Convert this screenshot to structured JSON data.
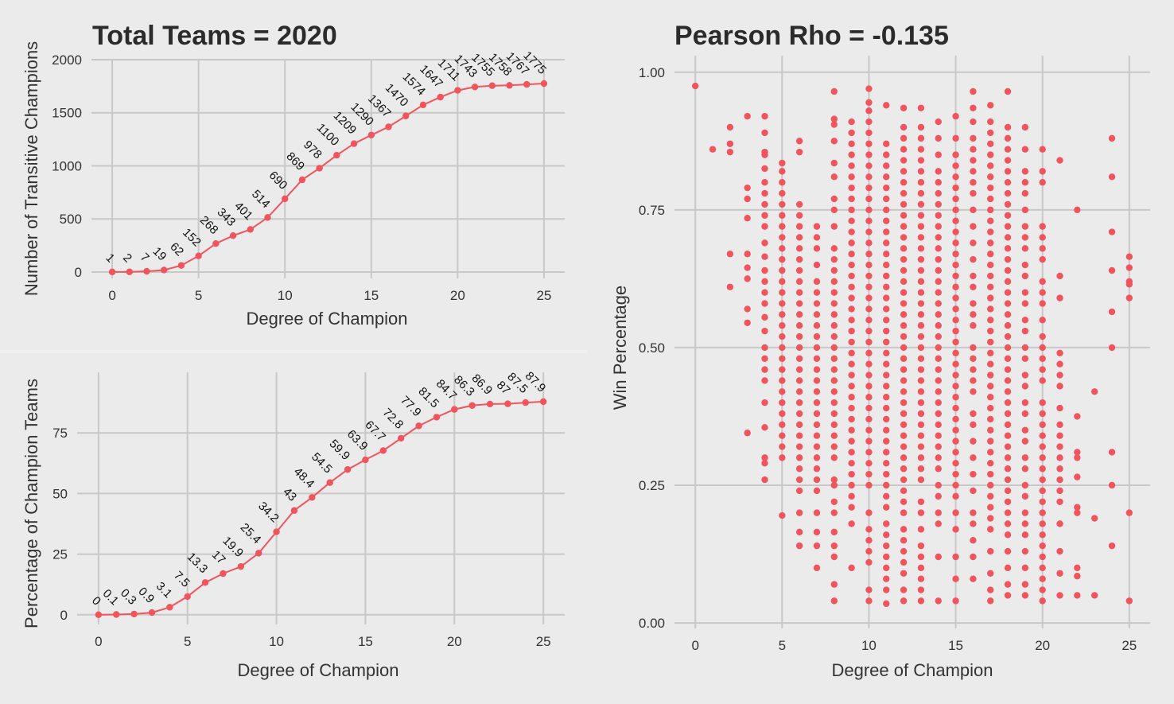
{
  "colors": {
    "background": "#ebebeb",
    "grid": "#c8c8c8",
    "accent": "#f0545c",
    "text": "#333333",
    "title": "#2b2b2b"
  },
  "chart_data": [
    {
      "type": "line",
      "title": "Total Teams = 2020",
      "xlabel": "Degree of Champion",
      "ylabel": "Number of Transitive Champions",
      "xlim": [
        -1.2,
        26.2
      ],
      "ylim": [
        -60,
        2000
      ],
      "xticks": [
        0,
        5,
        10,
        15,
        20,
        25
      ],
      "yticks": [
        0,
        500,
        1000,
        1500,
        2000
      ],
      "x": [
        0,
        1,
        2,
        3,
        4,
        5,
        6,
        7,
        8,
        9,
        10,
        11,
        12,
        13,
        14,
        15,
        16,
        17,
        18,
        19,
        20,
        21,
        22,
        23,
        24,
        25
      ],
      "values": [
        1,
        2,
        7,
        19,
        62,
        152,
        268,
        343,
        401,
        514,
        690,
        869,
        978,
        1100,
        1209,
        1290,
        1367,
        1470,
        1574,
        1647,
        1711,
        1743,
        1755,
        1758,
        1767,
        1775
      ],
      "labels": [
        "1",
        "2",
        "7",
        "19",
        "62",
        "152",
        "268",
        "343",
        "401",
        "514",
        "690",
        "869",
        "978",
        "1100",
        "1209",
        "1290",
        "1367",
        "1470",
        "1574",
        "1647",
        "1711",
        "1743",
        "1755",
        "1758",
        "1767",
        "1775"
      ],
      "grid": true
    },
    {
      "type": "line",
      "title": "",
      "xlabel": "Degree of Champion",
      "ylabel": "Percentage of Champion Teams",
      "xlim": [
        -1.2,
        26.2
      ],
      "ylim": [
        -4,
        100
      ],
      "xticks": [
        0,
        5,
        10,
        15,
        20,
        25
      ],
      "yticks": [
        0,
        25,
        50,
        75
      ],
      "x": [
        0,
        1,
        2,
        3,
        4,
        5,
        6,
        7,
        8,
        9,
        10,
        11,
        12,
        13,
        14,
        15,
        16,
        17,
        18,
        19,
        20,
        21,
        22,
        23,
        24,
        25
      ],
      "values": [
        0,
        0.1,
        0.3,
        0.9,
        3.1,
        7.5,
        13.3,
        17,
        19.9,
        25.4,
        34.2,
        43,
        48.4,
        54.5,
        59.9,
        63.9,
        67.7,
        72.8,
        77.9,
        81.5,
        84.7,
        86.3,
        86.9,
        87,
        87.5,
        87.9
      ],
      "labels": [
        "0",
        "0.1",
        "0.3",
        "0.9",
        "3.1",
        "7.5",
        "13.3",
        "17",
        "19.9",
        "25.4",
        "34.2",
        "43",
        "48.4",
        "54.5",
        "59.9",
        "63.9",
        "67.7",
        "72.8",
        "77.9",
        "81.5",
        "84.7",
        "86.3",
        "86.9",
        "87",
        "87.5",
        "87.9"
      ],
      "grid": true
    },
    {
      "type": "scatter",
      "title": "Pearson Rho = -0.135",
      "xlabel": "Degree of Champion",
      "ylabel": "Win Percentage",
      "xlim": [
        -1.2,
        26.2
      ],
      "ylim": [
        -0.01,
        1.03
      ],
      "xticks": [
        0,
        5,
        10,
        15,
        20,
        25
      ],
      "yticks": [
        0,
        0.25,
        0.5,
        0.75,
        1.0
      ],
      "ytick_labels": [
        "0.00",
        "0.25",
        "0.50",
        "0.75",
        "1.00"
      ],
      "points": [
        [
          0,
          [
            0.975
          ]
        ],
        [
          1,
          [
            0.86
          ]
        ],
        [
          2,
          [
            0.9,
            0.87,
            0.855,
            0.67,
            0.61
          ]
        ],
        [
          3,
          [
            0.92,
            0.79,
            0.77,
            0.735,
            0.67,
            0.645,
            0.625,
            0.57,
            0.545,
            0.345
          ]
        ],
        [
          4,
          [
            0.92,
            0.89,
            0.855,
            0.85,
            0.825,
            0.8,
            0.78,
            0.76,
            0.74,
            0.72,
            0.69,
            0.665,
            0.64,
            0.62,
            0.6,
            0.58,
            0.555,
            0.53,
            0.5,
            0.48,
            0.46,
            0.44,
            0.4,
            0.355,
            0.3,
            0.29,
            0.26
          ]
        ],
        [
          5,
          [
            0.835,
            0.82,
            0.8,
            0.78,
            0.76,
            0.74,
            0.72,
            0.7,
            0.68,
            0.66,
            0.64,
            0.62,
            0.6,
            0.58,
            0.56,
            0.54,
            0.52,
            0.5,
            0.48,
            0.46,
            0.44,
            0.42,
            0.4,
            0.38,
            0.36,
            0.34,
            0.32,
            0.3,
            0.195
          ]
        ],
        [
          6,
          [
            0.875,
            0.855,
            0.76,
            0.74,
            0.72,
            0.7,
            0.68,
            0.66,
            0.64,
            0.62,
            0.6,
            0.58,
            0.56,
            0.54,
            0.52,
            0.5,
            0.48,
            0.46,
            0.44,
            0.42,
            0.4,
            0.38,
            0.36,
            0.34,
            0.32,
            0.3,
            0.28,
            0.26,
            0.24,
            0.2,
            0.165,
            0.14
          ]
        ],
        [
          7,
          [
            0.72,
            0.7,
            0.68,
            0.65,
            0.62,
            0.6,
            0.58,
            0.56,
            0.54,
            0.52,
            0.5,
            0.48,
            0.46,
            0.44,
            0.42,
            0.4,
            0.38,
            0.36,
            0.34,
            0.32,
            0.3,
            0.28,
            0.26,
            0.24,
            0.2,
            0.165,
            0.14,
            0.1
          ]
        ],
        [
          8,
          [
            0.965,
            0.915,
            0.905,
            0.875,
            0.835,
            0.81,
            0.77,
            0.75,
            0.72,
            0.68,
            0.66,
            0.64,
            0.62,
            0.6,
            0.58,
            0.56,
            0.54,
            0.52,
            0.5,
            0.48,
            0.46,
            0.44,
            0.42,
            0.4,
            0.38,
            0.36,
            0.34,
            0.32,
            0.3,
            0.26,
            0.25,
            0.22,
            0.2,
            0.165,
            0.14,
            0.12,
            0.07,
            0.04
          ]
        ],
        [
          9,
          [
            0.91,
            0.89,
            0.87,
            0.85,
            0.83,
            0.81,
            0.79,
            0.77,
            0.75,
            0.73,
            0.71,
            0.69,
            0.67,
            0.65,
            0.63,
            0.61,
            0.59,
            0.57,
            0.55,
            0.53,
            0.51,
            0.49,
            0.47,
            0.45,
            0.43,
            0.41,
            0.39,
            0.37,
            0.35,
            0.33,
            0.31,
            0.29,
            0.27,
            0.25,
            0.23,
            0.21,
            0.18,
            0.1
          ]
        ],
        [
          10,
          [
            0.97,
            0.945,
            0.93,
            0.91,
            0.89,
            0.87,
            0.85,
            0.83,
            0.81,
            0.79,
            0.77,
            0.75,
            0.73,
            0.71,
            0.69,
            0.67,
            0.65,
            0.63,
            0.61,
            0.59,
            0.57,
            0.55,
            0.53,
            0.51,
            0.49,
            0.47,
            0.45,
            0.43,
            0.41,
            0.39,
            0.37,
            0.35,
            0.33,
            0.31,
            0.29,
            0.27,
            0.25,
            0.2,
            0.17,
            0.15,
            0.13,
            0.11,
            0.06,
            0.04
          ]
        ],
        [
          11,
          [
            0.94,
            0.87,
            0.85,
            0.83,
            0.81,
            0.79,
            0.77,
            0.75,
            0.73,
            0.71,
            0.69,
            0.67,
            0.65,
            0.63,
            0.61,
            0.59,
            0.57,
            0.55,
            0.53,
            0.51,
            0.49,
            0.47,
            0.45,
            0.43,
            0.41,
            0.39,
            0.37,
            0.35,
            0.33,
            0.31,
            0.29,
            0.27,
            0.25,
            0.23,
            0.21,
            0.18,
            0.16,
            0.14,
            0.12,
            0.1,
            0.08,
            0.06,
            0.035
          ]
        ],
        [
          12,
          [
            0.935,
            0.9,
            0.88,
            0.86,
            0.84,
            0.82,
            0.8,
            0.78,
            0.76,
            0.74,
            0.72,
            0.7,
            0.68,
            0.66,
            0.64,
            0.62,
            0.6,
            0.58,
            0.56,
            0.54,
            0.52,
            0.5,
            0.48,
            0.46,
            0.44,
            0.42,
            0.4,
            0.38,
            0.36,
            0.34,
            0.32,
            0.3,
            0.28,
            0.26,
            0.24,
            0.22,
            0.2,
            0.17,
            0.15,
            0.13,
            0.11,
            0.09,
            0.06,
            0.04
          ]
        ],
        [
          13,
          [
            0.935,
            0.9,
            0.88,
            0.86,
            0.84,
            0.82,
            0.8,
            0.78,
            0.76,
            0.74,
            0.72,
            0.7,
            0.68,
            0.66,
            0.64,
            0.62,
            0.6,
            0.58,
            0.56,
            0.54,
            0.52,
            0.5,
            0.48,
            0.46,
            0.44,
            0.42,
            0.4,
            0.38,
            0.36,
            0.34,
            0.32,
            0.3,
            0.28,
            0.26,
            0.22,
            0.2,
            0.17,
            0.14,
            0.12,
            0.1,
            0.08,
            0.06,
            0.04
          ]
        ],
        [
          14,
          [
            0.91,
            0.88,
            0.85,
            0.82,
            0.8,
            0.78,
            0.76,
            0.74,
            0.72,
            0.7,
            0.68,
            0.66,
            0.64,
            0.62,
            0.6,
            0.58,
            0.56,
            0.54,
            0.52,
            0.5,
            0.48,
            0.46,
            0.44,
            0.42,
            0.4,
            0.38,
            0.36,
            0.34,
            0.32,
            0.3,
            0.28,
            0.25,
            0.23,
            0.2,
            0.18,
            0.12,
            0.04
          ]
        ],
        [
          15,
          [
            0.92,
            0.88,
            0.85,
            0.83,
            0.81,
            0.79,
            0.77,
            0.75,
            0.73,
            0.71,
            0.69,
            0.67,
            0.65,
            0.63,
            0.61,
            0.59,
            0.57,
            0.55,
            0.53,
            0.51,
            0.49,
            0.47,
            0.45,
            0.43,
            0.41,
            0.39,
            0.37,
            0.35,
            0.33,
            0.31,
            0.29,
            0.27,
            0.25,
            0.23,
            0.2,
            0.17,
            0.12,
            0.08,
            0.04
          ]
        ],
        [
          16,
          [
            0.965,
            0.935,
            0.91,
            0.88,
            0.86,
            0.84,
            0.82,
            0.8,
            0.78,
            0.75,
            0.72,
            0.69,
            0.66,
            0.63,
            0.61,
            0.58,
            0.56,
            0.54,
            0.5,
            0.48,
            0.46,
            0.44,
            0.42,
            0.38,
            0.36,
            0.33,
            0.3,
            0.27,
            0.24,
            0.2,
            0.18,
            0.15,
            0.12,
            0.08
          ]
        ],
        [
          17,
          [
            0.94,
            0.91,
            0.89,
            0.87,
            0.85,
            0.83,
            0.81,
            0.79,
            0.77,
            0.75,
            0.73,
            0.71,
            0.69,
            0.67,
            0.65,
            0.63,
            0.61,
            0.59,
            0.57,
            0.55,
            0.53,
            0.51,
            0.49,
            0.47,
            0.45,
            0.43,
            0.41,
            0.39,
            0.37,
            0.35,
            0.33,
            0.31,
            0.29,
            0.27,
            0.25,
            0.23,
            0.21,
            0.19,
            0.17,
            0.13,
            0.09,
            0.06,
            0.04
          ]
        ],
        [
          18,
          [
            0.965,
            0.9,
            0.88,
            0.86,
            0.84,
            0.82,
            0.8,
            0.78,
            0.76,
            0.74,
            0.72,
            0.7,
            0.68,
            0.66,
            0.64,
            0.62,
            0.6,
            0.58,
            0.56,
            0.54,
            0.52,
            0.5,
            0.48,
            0.46,
            0.44,
            0.42,
            0.4,
            0.38,
            0.36,
            0.34,
            0.32,
            0.3,
            0.28,
            0.26,
            0.24,
            0.22,
            0.2,
            0.18,
            0.16,
            0.13,
            0.1,
            0.07,
            0.05
          ]
        ],
        [
          19,
          [
            0.9,
            0.86,
            0.82,
            0.8,
            0.78,
            0.75,
            0.72,
            0.7,
            0.68,
            0.65,
            0.63,
            0.6,
            0.58,
            0.55,
            0.53,
            0.5,
            0.48,
            0.45,
            0.43,
            0.4,
            0.38,
            0.35,
            0.33,
            0.3,
            0.28,
            0.25,
            0.23,
            0.2,
            0.18,
            0.16,
            0.13,
            0.1,
            0.07,
            0.05
          ]
        ],
        [
          20,
          [
            0.86,
            0.82,
            0.8,
            0.72,
            0.7,
            0.68,
            0.66,
            0.62,
            0.6,
            0.58,
            0.55,
            0.52,
            0.5,
            0.48,
            0.46,
            0.44,
            0.4,
            0.38,
            0.36,
            0.34,
            0.32,
            0.3,
            0.28,
            0.26,
            0.24,
            0.22,
            0.2,
            0.18,
            0.16,
            0.14,
            0.12,
            0.1,
            0.08,
            0.06,
            0.04
          ]
        ],
        [
          21,
          [
            0.84,
            0.63,
            0.59,
            0.49,
            0.47,
            0.45,
            0.43,
            0.39,
            0.36,
            0.34,
            0.32,
            0.3,
            0.28,
            0.26,
            0.24,
            0.22,
            0.18,
            0.13,
            0.09,
            0.05
          ]
        ],
        [
          22,
          [
            0.75,
            0.375,
            0.31,
            0.3,
            0.265,
            0.21,
            0.2,
            0.1,
            0.085,
            0.05
          ]
        ],
        [
          23,
          [
            0.42,
            0.19,
            0.05
          ]
        ],
        [
          24,
          [
            0.88,
            0.81,
            0.71,
            0.64,
            0.565,
            0.5,
            0.31,
            0.25,
            0.14
          ]
        ],
        [
          25,
          [
            0.665,
            0.645,
            0.62,
            0.615,
            0.59,
            0.2,
            0.04
          ]
        ]
      ],
      "grid": true
    }
  ]
}
